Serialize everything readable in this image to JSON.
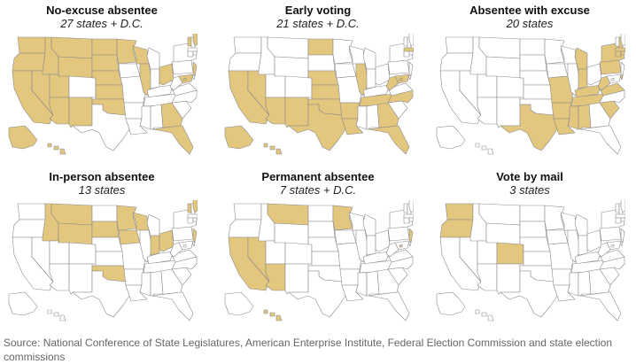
{
  "colors": {
    "highlight": "#e3c77f",
    "fill": "#ffffff",
    "border": "#8a8a8a"
  },
  "panels": [
    {
      "title": "No-excuse absentee",
      "subtitle": "27 states + D.C.",
      "highlighted_states": [
        "WA",
        "OR",
        "CA",
        "NV",
        "ID",
        "MT",
        "WY",
        "UT",
        "AZ",
        "NM",
        "ND",
        "SD",
        "NE",
        "KS",
        "OK",
        "MN",
        "WI",
        "IL",
        "OH",
        "GA",
        "FL",
        "NJ",
        "VT",
        "ME",
        "AK",
        "HI",
        "MD",
        "DC"
      ]
    },
    {
      "title": "Early voting",
      "subtitle": "21 states + D.C.",
      "highlighted_states": [
        "CA",
        "NV",
        "AZ",
        "NM",
        "TX",
        "OK",
        "KS",
        "NE",
        "ND",
        "AR",
        "LA",
        "TN",
        "GA",
        "FL",
        "NC",
        "IL",
        "WV",
        "MD",
        "AK",
        "HI",
        "MA",
        "DC"
      ]
    },
    {
      "title": "Absentee with excuse",
      "subtitle": "20 states",
      "highlighted_states": [
        "TX",
        "AR",
        "LA",
        "MS",
        "AL",
        "TN",
        "KY",
        "IN",
        "MO",
        "MI",
        "SC",
        "VA",
        "PA",
        "NY",
        "NH",
        "MA",
        "CT",
        "RI",
        "DE",
        "WV"
      ]
    },
    {
      "title": "In-person absentee",
      "subtitle": "13 states",
      "highlighted_states": [
        "ID",
        "MT",
        "WY",
        "SD",
        "IA",
        "MN",
        "WI",
        "IN",
        "OH",
        "ME",
        "OK",
        "VT",
        "NJ"
      ]
    },
    {
      "title": "Permanent absentee",
      "subtitle": "7 states + D.C.",
      "highlighted_states": [
        "CA",
        "AZ",
        "MT",
        "MN",
        "NJ",
        "HI",
        "NV",
        "DC"
      ]
    },
    {
      "title": "Vote by mail",
      "subtitle": "3 states",
      "highlighted_states": [
        "WA",
        "OR",
        "CO"
      ]
    }
  ],
  "source": "Source: National Conference of State Legislatures, American Enterprise Institute, Federal Election Commission and state election commissions"
}
